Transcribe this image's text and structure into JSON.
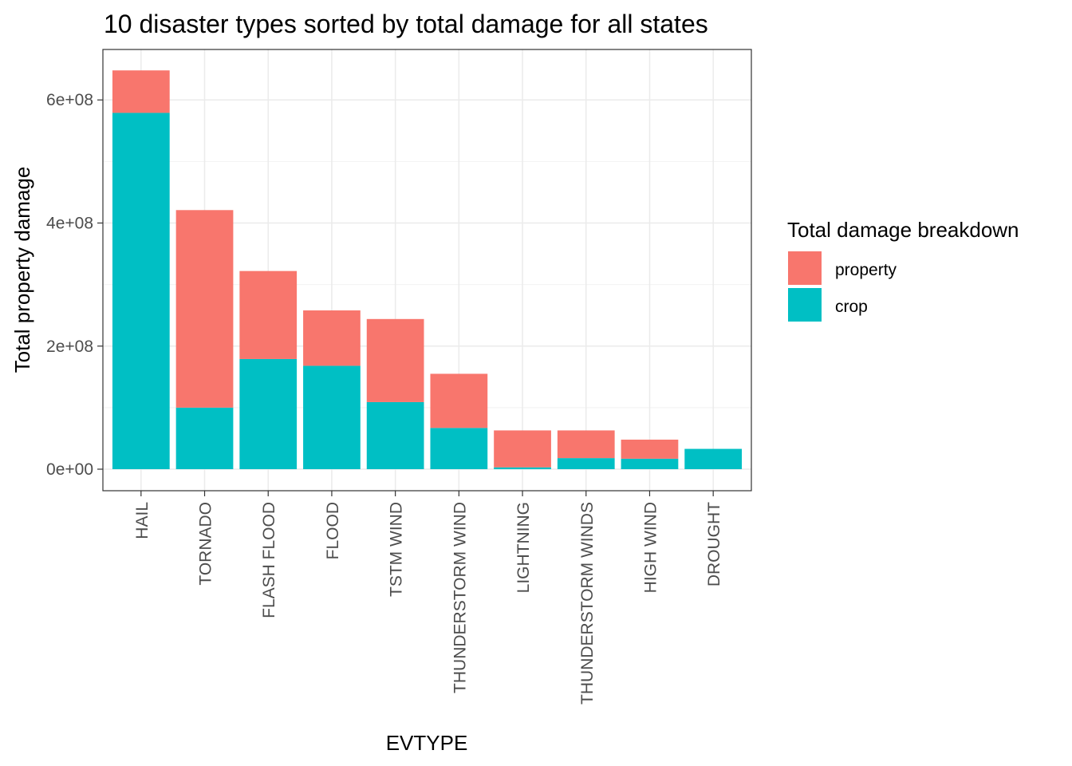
{
  "chart_data": {
    "type": "bar",
    "stacked": true,
    "title": "10 disaster types sorted by total damage for all states",
    "xlabel": "EVTYPE",
    "ylabel": "Total property damage",
    "categories": [
      "HAIL",
      "TORNADO",
      "FLASH FLOOD",
      "FLOOD",
      "TSTM WIND",
      "THUNDERSTORM WIND",
      "LIGHTNING",
      "THUNDERSTORM WINDS",
      "HIGH WIND",
      "DROUGHT"
    ],
    "series": [
      {
        "name": "crop",
        "color": "#00BFC4",
        "values": [
          579000000,
          100000000,
          179000000,
          168000000,
          109000000,
          67000000,
          3000000,
          18000000,
          17000000,
          33000000
        ]
      },
      {
        "name": "property",
        "color": "#F8766D",
        "values": [
          69000000,
          321000000,
          143000000,
          90000000,
          135000000,
          88000000,
          60000000,
          45000000,
          31000000,
          0
        ]
      }
    ],
    "ylim": [
      -35000000,
      682000000
    ],
    "yticks": [
      0,
      200000000,
      400000000,
      600000000
    ],
    "ytick_labels": [
      "0e+00",
      "2e+08",
      "4e+08",
      "6e+08"
    ],
    "grid": true,
    "legend": {
      "title": "Total damage breakdown",
      "position": "right",
      "entries": [
        {
          "label": "property",
          "color": "#F8766D"
        },
        {
          "label": "crop",
          "color": "#00BFC4"
        }
      ]
    }
  }
}
